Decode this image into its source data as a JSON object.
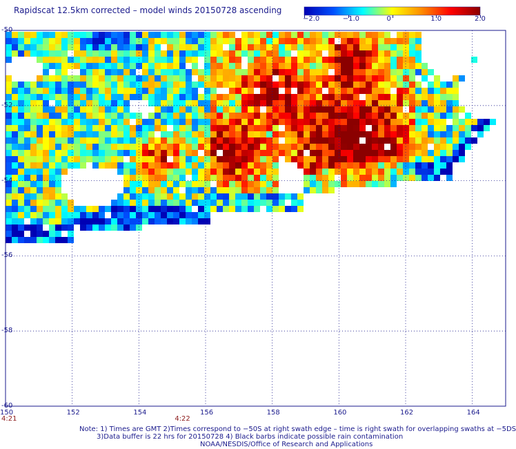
{
  "title": "Rapidscat 12.5km corrected – model winds 20150728 ascending",
  "colorbar": {
    "ticks": [
      "−2.0",
      "−1.0",
      "0",
      "1.0",
      "2.0"
    ],
    "values": [
      -2.0,
      -1.0,
      0,
      1.0,
      2.0
    ],
    "colors": [
      "#0000b4",
      "#0050ff",
      "#00ffff",
      "#ffff00",
      "#ff8c00",
      "#ff0000",
      "#8b0000"
    ]
  },
  "map": {
    "lon_range": [
      150,
      165
    ],
    "lat_range": [
      -60,
      -50
    ],
    "lon_ticks": [
      "150",
      "152",
      "154",
      "156",
      "158",
      "160",
      "162",
      "164"
    ],
    "lon_tick_values": [
      150,
      152,
      154,
      156,
      158,
      160,
      162,
      164
    ],
    "lat_ticks": [
      "-50",
      "-52",
      "-54",
      "-56",
      "-58",
      "-60"
    ],
    "lat_tick_values": [
      -50,
      -52,
      -54,
      -56,
      -58,
      -60
    ],
    "grid": true,
    "time_labels": [
      {
        "text": "4:21",
        "lon": 150.0
      },
      {
        "text": "4:22",
        "lon": 155.2
      }
    ]
  },
  "notes": {
    "line1": "Note: 1) Times are GMT 2)Times correspond to −50S at right swath edge – time is right swath for overlapping swaths at −5DS",
    "line2": "3)Data buffer is 22 hrs for 20150728 4) Black barbs indicate possible rain contamination",
    "line3": "NOAA/NESDIS/Office of Research and Applications"
  }
}
